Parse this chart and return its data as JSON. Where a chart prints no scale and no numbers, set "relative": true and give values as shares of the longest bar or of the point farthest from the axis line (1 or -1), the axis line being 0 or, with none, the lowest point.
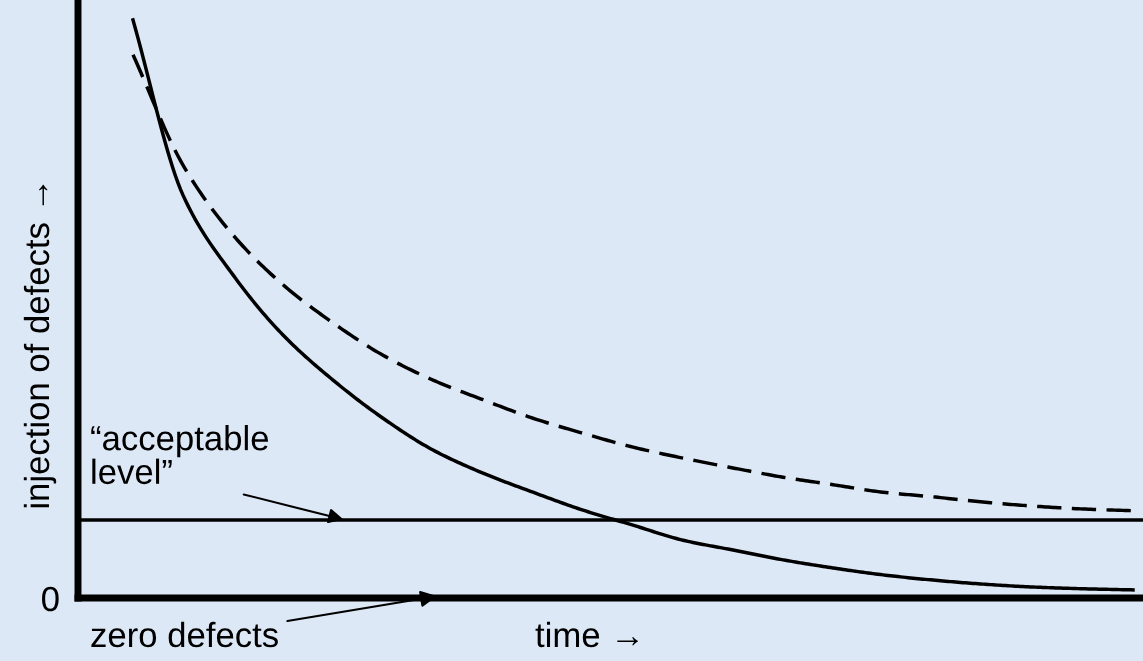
{
  "chart_data": {
    "type": "line",
    "relative": true,
    "xlabel": "time →",
    "ylabel": "injection of defects →",
    "categories": [
      null,
      null,
      null,
      null,
      null,
      null,
      null,
      null,
      null,
      null,
      null,
      null,
      null,
      null,
      null,
      null,
      null,
      null,
      null,
      null,
      null
    ],
    "series": [
      {
        "color": "#000000",
        "line_style": "solid",
        "values": [
          1.0,
          0.697,
          0.559,
          0.455,
          0.377,
          0.311,
          0.256,
          0.216,
          0.183,
          0.152,
          0.126,
          0.1,
          0.083,
          0.066,
          0.052,
          0.04,
          0.031,
          0.024,
          0.019,
          0.016,
          0.014
        ]
      },
      {
        "color": "#000000",
        "line_style": "dashed",
        "values": [
          0.94,
          0.749,
          0.628,
          0.542,
          0.476,
          0.42,
          0.377,
          0.343,
          0.311,
          0.285,
          0.261,
          0.242,
          0.225,
          0.209,
          0.196,
          0.183,
          0.175,
          0.166,
          0.159,
          0.154,
          0.151
        ]
      }
    ],
    "ref_lines": [
      {
        "axis": "y",
        "value": 0.135,
        "label": "“acceptable\nlevel”",
        "color": "#000000",
        "line_style": "solid"
      }
    ],
    "annotations": [
      "0",
      "zero defects"
    ],
    "marker": "none"
  }
}
